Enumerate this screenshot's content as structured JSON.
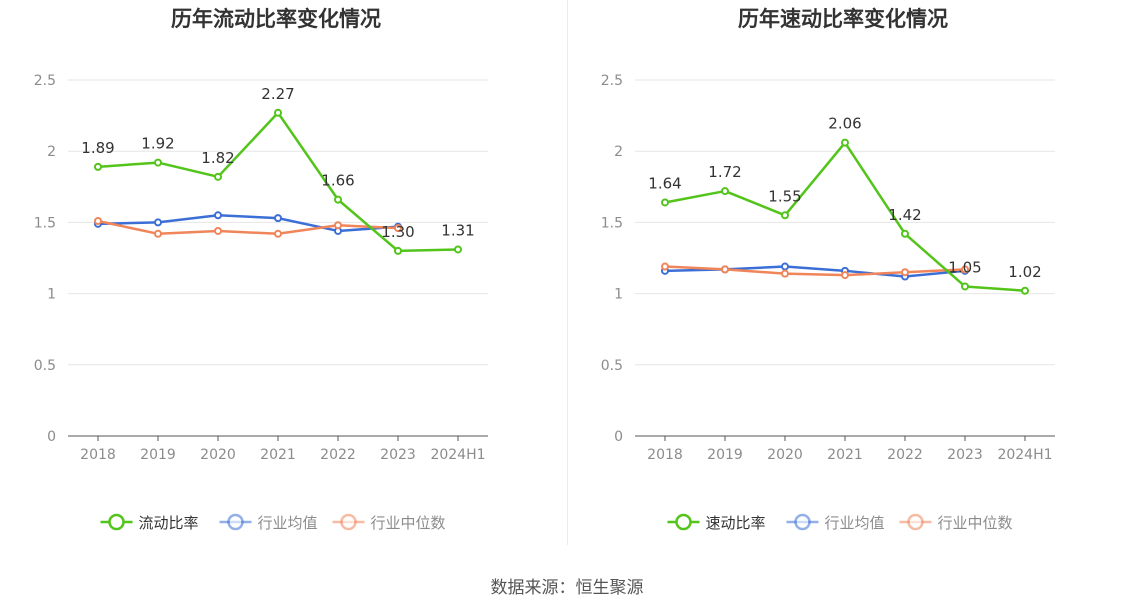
{
  "footer": {
    "source": "数据来源：恒生聚源"
  },
  "chart_data": [
    {
      "type": "line",
      "title": "历年流动比率变化情况",
      "categories": [
        "2018",
        "2019",
        "2020",
        "2021",
        "2022",
        "2023",
        "2024H1"
      ],
      "ylim": [
        0,
        2.5
      ],
      "yticks": [
        0,
        0.5,
        1,
        1.5,
        2,
        2.5
      ],
      "ytick_labels": [
        "0",
        "0.5",
        "1",
        "1.5",
        "2",
        "2.5"
      ],
      "legend_position": "bottom-center",
      "grid": true,
      "series": [
        {
          "name": "流动比率",
          "color": "#52c41a",
          "labeled": true,
          "values": [
            1.89,
            1.92,
            1.82,
            2.27,
            1.66,
            1.3,
            1.31
          ],
          "labels": [
            "1.89",
            "1.92",
            "1.82",
            "2.27",
            "1.66",
            "1.30",
            "1.31"
          ]
        },
        {
          "name": "行业均值",
          "color": "#3b6fd6",
          "labeled": false,
          "values": [
            1.49,
            1.5,
            1.55,
            1.53,
            1.44,
            1.47,
            null
          ]
        },
        {
          "name": "行业中位数",
          "color": "#f0855a",
          "labeled": false,
          "values": [
            1.51,
            1.42,
            1.44,
            1.42,
            1.48,
            1.46,
            null
          ]
        }
      ]
    },
    {
      "type": "line",
      "title": "历年速动比率变化情况",
      "categories": [
        "2018",
        "2019",
        "2020",
        "2021",
        "2022",
        "2023",
        "2024H1"
      ],
      "ylim": [
        0,
        2.5
      ],
      "yticks": [
        0,
        0.5,
        1,
        1.5,
        2,
        2.5
      ],
      "ytick_labels": [
        "0",
        "0.5",
        "1",
        "1.5",
        "2",
        "2.5"
      ],
      "legend_position": "bottom-center",
      "grid": true,
      "series": [
        {
          "name": "速动比率",
          "color": "#52c41a",
          "labeled": true,
          "values": [
            1.64,
            1.72,
            1.55,
            2.06,
            1.42,
            1.05,
            1.02
          ],
          "labels": [
            "1.64",
            "1.72",
            "1.55",
            "2.06",
            "1.42",
            "1.05",
            "1.02"
          ]
        },
        {
          "name": "行业均值",
          "color": "#3b6fd6",
          "labeled": false,
          "values": [
            1.16,
            1.17,
            1.19,
            1.16,
            1.12,
            1.16,
            null
          ]
        },
        {
          "name": "行业中位数",
          "color": "#f0855a",
          "labeled": false,
          "values": [
            1.19,
            1.17,
            1.14,
            1.13,
            1.15,
            1.17,
            null
          ]
        }
      ]
    }
  ]
}
